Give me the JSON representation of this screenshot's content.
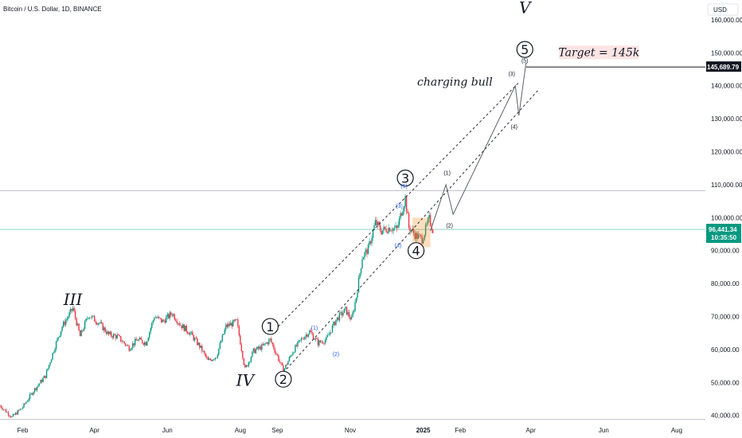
{
  "chart_data": {
    "type": "candlestick",
    "title": "Bitcoin / U.S. Dollar, 1D, BINANCE",
    "currency": "USD",
    "y_axis": {
      "ticks": [
        40000,
        50000,
        60000,
        70000,
        80000,
        90000,
        100000,
        110000,
        120000,
        130000,
        140000,
        150000,
        160000
      ],
      "tick_labels": [
        "40,000.00",
        "50,000.00",
        "60,000.00",
        "70,000.00",
        "80,000.00",
        "90,000.00",
        "100,000.00",
        "110,000.00",
        "120,000.00",
        "130,000.00",
        "140,000.00",
        "150,000.00",
        "160,000.00"
      ],
      "ylim": [
        38000,
        166000
      ]
    },
    "x_axis": {
      "tick_labels": [
        {
          "label": "Feb",
          "date": "2024-02-01",
          "bold": false
        },
        {
          "label": "Apr",
          "date": "2024-04-01",
          "bold": false
        },
        {
          "label": "Jun",
          "date": "2024-06-01",
          "bold": false
        },
        {
          "label": "Aug",
          "date": "2024-08-01",
          "bold": false
        },
        {
          "label": "Sep",
          "date": "2024-09-01",
          "bold": false
        },
        {
          "label": "Nov",
          "date": "2024-11-01",
          "bold": false
        },
        {
          "label": "2025",
          "date": "2025-01-01",
          "bold": true
        },
        {
          "label": "Feb",
          "date": "2025-02-01",
          "bold": false
        },
        {
          "label": "Apr",
          "date": "2025-04-01",
          "bold": false
        },
        {
          "label": "Jun",
          "date": "2025-06-01",
          "bold": false
        },
        {
          "label": "Aug",
          "date": "2025-08-01",
          "bold": false
        }
      ],
      "range": [
        "2024-01-13",
        "2025-08-25"
      ]
    },
    "price_series": [
      [
        "2024-01-13",
        43000
      ],
      [
        "2024-01-23",
        39500
      ],
      [
        "2024-02-01",
        42500
      ],
      [
        "2024-02-10",
        47500
      ],
      [
        "2024-02-20",
        52000
      ],
      [
        "2024-02-28",
        61000
      ],
      [
        "2024-03-05",
        67000
      ],
      [
        "2024-03-14",
        72500
      ],
      [
        "2024-03-20",
        64000
      ],
      [
        "2024-03-27",
        70500
      ],
      [
        "2024-04-05",
        68000
      ],
      [
        "2024-04-13",
        64500
      ],
      [
        "2024-04-20",
        64000
      ],
      [
        "2024-04-30",
        60500
      ],
      [
        "2024-05-07",
        63000
      ],
      [
        "2024-05-14",
        62000
      ],
      [
        "2024-05-21",
        70000
      ],
      [
        "2024-05-28",
        68500
      ],
      [
        "2024-06-05",
        71000
      ],
      [
        "2024-06-12",
        67500
      ],
      [
        "2024-06-20",
        65000
      ],
      [
        "2024-06-28",
        61000
      ],
      [
        "2024-07-05",
        56500
      ],
      [
        "2024-07-12",
        58000
      ],
      [
        "2024-07-20",
        67000
      ],
      [
        "2024-07-29",
        68500
      ],
      [
        "2024-08-05",
        54000
      ],
      [
        "2024-08-12",
        59500
      ],
      [
        "2024-08-20",
        61000
      ],
      [
        "2024-08-26",
        63000
      ],
      [
        "2024-09-01",
        58000
      ],
      [
        "2024-09-06",
        53500
      ],
      [
        "2024-09-14",
        59500
      ],
      [
        "2024-09-22",
        63500
      ],
      [
        "2024-09-28",
        65500
      ],
      [
        "2024-10-05",
        62000
      ],
      [
        "2024-10-12",
        63000
      ],
      [
        "2024-10-20",
        69000
      ],
      [
        "2024-10-28",
        72000
      ],
      [
        "2024-11-02",
        69000
      ],
      [
        "2024-11-06",
        76000
      ],
      [
        "2024-11-11",
        88000
      ],
      [
        "2024-11-16",
        90500
      ],
      [
        "2024-11-22",
        98500
      ],
      [
        "2024-11-27",
        96000
      ],
      [
        "2024-12-04",
        97000
      ],
      [
        "2024-12-10",
        96500
      ],
      [
        "2024-12-17",
        106000
      ],
      [
        "2024-12-20",
        97000
      ],
      [
        "2024-12-26",
        94500
      ],
      [
        "2024-12-31",
        93500
      ],
      [
        "2025-01-06",
        99500
      ],
      [
        "2025-01-09",
        96441
      ]
    ],
    "last_price": {
      "value": 96441.34,
      "label": "96,441.34",
      "countdown": "10:35:50",
      "color": "#089981"
    },
    "target_price": {
      "value": 145689.79,
      "label": "145,689.79",
      "color": "#131722"
    },
    "resistance_level": 108200,
    "support_level": 38800,
    "waves": [
      {
        "label": "III",
        "date": "2024-03-14",
        "price": 73500,
        "style": "roman"
      },
      {
        "label": "IV",
        "date": "2024-08-05",
        "price": 49000,
        "style": "roman"
      },
      {
        "label": "1",
        "date": "2024-08-26",
        "price": 67000,
        "style": "circle"
      },
      {
        "label": "2",
        "date": "2024-09-06",
        "price": 51000,
        "style": "circle"
      },
      {
        "label": "3",
        "date": "2024-12-17",
        "price": 112000,
        "style": "circle"
      },
      {
        "label": "4",
        "date": "2024-12-26",
        "price": 90000,
        "style": "circle"
      },
      {
        "label": "5",
        "date": "2025-03-27",
        "price": 151000,
        "style": "circle"
      },
      {
        "label": "V",
        "date": "2025-03-27",
        "price": 162000,
        "style": "roman"
      },
      {
        "label": "(1)",
        "date": "2024-10-02",
        "price": 66000,
        "style": "blue"
      },
      {
        "label": "(2)",
        "date": "2024-10-20",
        "price": 58000,
        "style": "blue"
      },
      {
        "label": "(3)",
        "date": "2024-12-12",
        "price": 103000,
        "style": "blue"
      },
      {
        "label": "(4)",
        "date": "2024-12-11",
        "price": 91000,
        "style": "blue"
      },
      {
        "label": "(5)",
        "date": "2024-12-16",
        "price": 109000,
        "style": "blue"
      },
      {
        "label": "(1)",
        "date": "2025-01-21",
        "price": 113000,
        "style": "dark"
      },
      {
        "label": "(2)",
        "date": "2025-01-23",
        "price": 97000,
        "style": "dark"
      },
      {
        "label": "(3)",
        "date": "2025-03-16",
        "price": 143000,
        "style": "dark"
      },
      {
        "label": "(4)",
        "date": "2025-03-18",
        "price": 127000,
        "style": "dark"
      },
      {
        "label": "(5)",
        "date": "2025-03-27",
        "price": 147000,
        "style": "dark"
      }
    ],
    "projection_path": [
      [
        "2025-01-07",
        96000
      ],
      [
        "2025-01-20",
        110000
      ],
      [
        "2025-01-26",
        101000
      ],
      [
        "2025-03-19",
        140000
      ],
      [
        "2025-03-22",
        131000
      ],
      [
        "2025-03-28",
        147000
      ]
    ],
    "channel_upper": [
      [
        "2024-08-30",
        66000
      ],
      [
        "2025-03-22",
        141000
      ]
    ],
    "channel_lower": [
      [
        "2024-09-06",
        53000
      ],
      [
        "2025-04-08",
        139000
      ]
    ],
    "annotations": {
      "charging_bull": {
        "text": "charging bull",
        "date": "2025-02-28",
        "price": 140000
      },
      "target": {
        "text": "Target = 145k",
        "date": "2025-05-28",
        "price": 149500
      }
    }
  }
}
